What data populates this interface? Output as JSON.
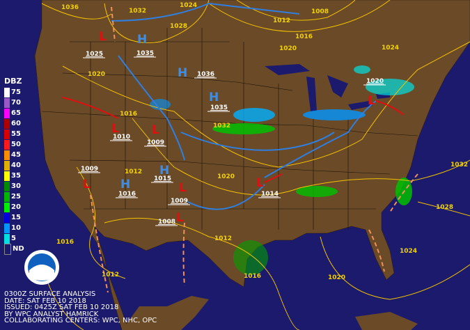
{
  "colors": {
    "ocean": "#1c1a6c",
    "land": "#6b4a28",
    "isobar": "#f2c200",
    "high": "#3d8ee6",
    "low": "#e01010",
    "cold_front": "#2f7fe0",
    "warm_front": "#e01010",
    "trough": "#f0905a"
  },
  "legend": {
    "title": "DBZ",
    "items": [
      {
        "label": "75",
        "color": "#ffffff"
      },
      {
        "label": "70",
        "color": "#9b59c8"
      },
      {
        "label": "65",
        "color": "#ff00ff"
      },
      {
        "label": "60",
        "color": "#b00000"
      },
      {
        "label": "55",
        "color": "#d80000"
      },
      {
        "label": "50",
        "color": "#ff1a1a"
      },
      {
        "label": "45",
        "color": "#ff8c00"
      },
      {
        "label": "40",
        "color": "#e0b000"
      },
      {
        "label": "35",
        "color": "#ffff00"
      },
      {
        "label": "30",
        "color": "#008a00"
      },
      {
        "label": "25",
        "color": "#00b400"
      },
      {
        "label": "20",
        "color": "#00ee00"
      },
      {
        "label": "15",
        "color": "#0000e0"
      },
      {
        "label": "10",
        "color": "#0096ff"
      },
      {
        "label": "5",
        "color": "#00e0e0"
      },
      {
        "label": "ND",
        "color": "#1c1a6c"
      }
    ]
  },
  "isobar_labels": [
    "1036",
    "1032",
    "1024",
    "1028",
    "1012",
    "1008",
    "1016",
    "1020",
    "1024",
    "1020",
    "1016",
    "1032",
    "1012",
    "1020",
    "1016",
    "1012",
    "1012",
    "1016",
    "1020",
    "1024",
    "1028",
    "1032"
  ],
  "highs": [
    {
      "symbol": "H",
      "pressure": "1035"
    },
    {
      "symbol": "H",
      "pressure": "1036"
    },
    {
      "symbol": "H",
      "pressure": "1035"
    },
    {
      "symbol": "H",
      "pressure": "1015"
    },
    {
      "symbol": "H",
      "pressure": "1016"
    }
  ],
  "lows": [
    {
      "symbol": "L",
      "pressure": "1025"
    },
    {
      "symbol": "L",
      "pressure": "1009"
    },
    {
      "symbol": "L",
      "pressure": "1009"
    },
    {
      "symbol": "L",
      "pressure": "1009"
    },
    {
      "symbol": "L",
      "pressure": "1008"
    },
    {
      "symbol": "L",
      "pressure": "1014"
    },
    {
      "symbol": "L",
      "pressure": "1020"
    },
    {
      "symbol": "L",
      "pressure": "1010"
    }
  ],
  "caption": {
    "line1": "0300Z SURFACE ANALYSIS",
    "line2": "DATE: SAT FEB 10 2018",
    "line3": "ISSUED: 0425Z SAT FEB 10 2018",
    "line4": "BY WPC ANALYST HAMRICK",
    "line5": "COLLABORATING CENTERS: WPC, NHC, OPC"
  },
  "logo": {
    "text": "NOAA"
  }
}
